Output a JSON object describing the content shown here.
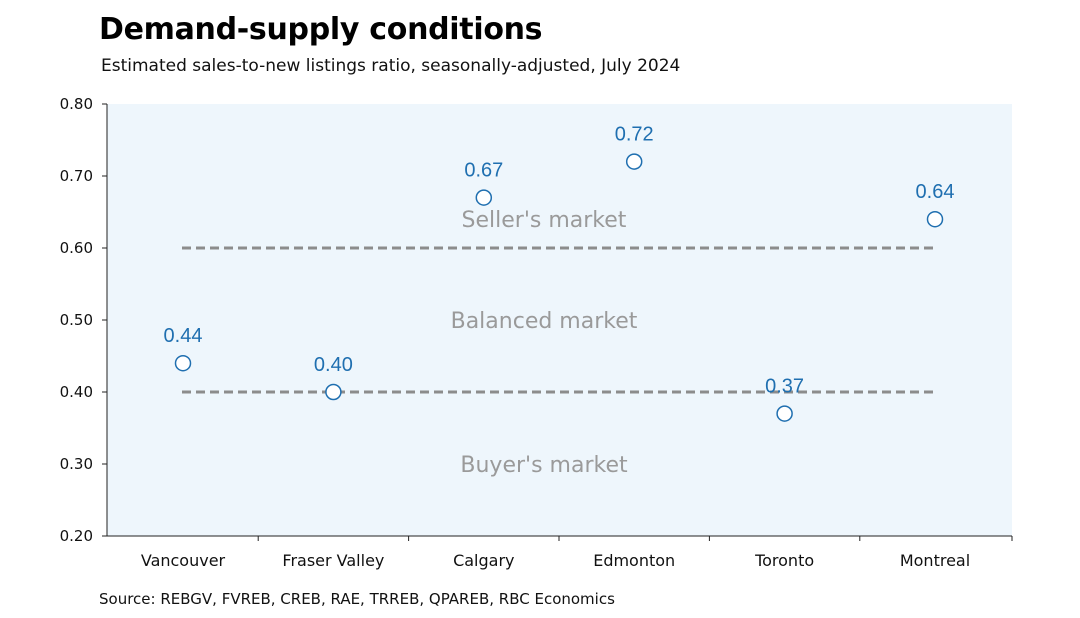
{
  "title": "Demand-supply conditions",
  "subtitle": "Estimated sales-to-new listings ratio, seasonally-adjusted,  July 2024",
  "source": "Source: REBGV, FVREB, CREB, RAE, TRREB, QPAREB, RBC Economics",
  "colors": {
    "plot_background": "#eef6fc",
    "marker_stroke": "#1f6fb0",
    "data_label": "#1f6fb0",
    "threshold_line": "#8c8c8c",
    "zone_label": "#9a9a9a"
  },
  "chart_data": {
    "type": "scatter",
    "categories": [
      "Vancouver",
      "Fraser Valley",
      "Calgary",
      "Edmonton",
      "Toronto",
      "Montreal"
    ],
    "values": [
      0.44,
      0.4,
      0.67,
      0.72,
      0.37,
      0.64
    ],
    "data_labels": [
      "0.44",
      "0.40",
      "0.67",
      "0.72",
      "0.37",
      "0.64"
    ],
    "ylim": [
      0.2,
      0.8
    ],
    "yticks": [
      0.2,
      0.3,
      0.4,
      0.5,
      0.6,
      0.7,
      0.8
    ],
    "ytick_labels": [
      "0.20",
      "0.30",
      "0.40",
      "0.50",
      "0.60",
      "0.70",
      "0.80"
    ],
    "thresholds": [
      0.6,
      0.4
    ],
    "zones": [
      {
        "label": "Seller's market",
        "y": 0.64
      },
      {
        "label": "Balanced market",
        "y": 0.5
      },
      {
        "label": "Buyer's market",
        "y": 0.3
      }
    ],
    "xlabel": "",
    "ylabel": "",
    "grid": false
  }
}
